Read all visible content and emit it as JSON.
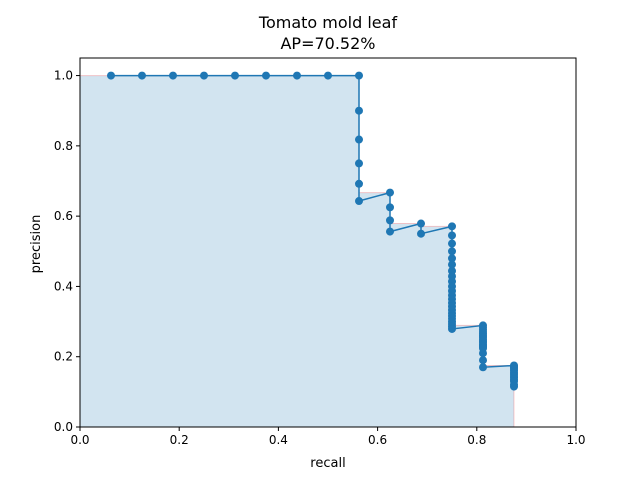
{
  "chart_data": {
    "type": "line",
    "title": "Tomato mold leaf",
    "subtitle": "AP=70.52%",
    "xlabel": "recall",
    "ylabel": "precision",
    "xlim": [
      0,
      1
    ],
    "ylim": [
      0,
      1.05
    ],
    "xticks": [
      "0.0",
      "0.2",
      "0.4",
      "0.6",
      "0.8",
      "1.0"
    ],
    "yticks": [
      "0.0",
      "0.2",
      "0.4",
      "0.6",
      "0.8",
      "1.0"
    ],
    "grid": false,
    "legend": "none",
    "colors": {
      "line": "#1f77b4",
      "fill": "#1f77b4",
      "fill_opacity": 0.2,
      "envelope": "#ff0000"
    },
    "series": [
      {
        "x": [
          0.0625,
          0.125,
          0.1875,
          0.25,
          0.3125,
          0.375,
          0.4375,
          0.5,
          0.5625,
          0.5625,
          0.5625,
          0.5625,
          0.5625,
          0.5625,
          0.625,
          0.625,
          0.625,
          0.625,
          0.6875,
          0.6875,
          0.75,
          0.75,
          0.75,
          0.75,
          0.75,
          0.75,
          0.75,
          0.75,
          0.75,
          0.75,
          0.75,
          0.75,
          0.75,
          0.75,
          0.75,
          0.75,
          0.75,
          0.75,
          0.75,
          0.75,
          0.75,
          0.75,
          0.75,
          0.8125,
          0.8125,
          0.8125,
          0.8125,
          0.8125,
          0.8125,
          0.8125,
          0.8125,
          0.8125,
          0.8125,
          0.8125,
          0.8125,
          0.8125,
          0.8125,
          0.8125,
          0.8125,
          0.8125,
          0.875,
          0.875,
          0.875,
          0.875,
          0.875,
          0.875,
          0.875,
          0.875,
          0.875,
          0.875,
          0.875,
          0.875,
          0.875
        ],
        "y": [
          1.0,
          1.0,
          1.0,
          1.0,
          1.0,
          1.0,
          1.0,
          1.0,
          1.0,
          0.9,
          0.818,
          0.75,
          0.692,
          0.643,
          0.667,
          0.625,
          0.588,
          0.556,
          0.579,
          0.55,
          0.571,
          0.545,
          0.522,
          0.5,
          0.48,
          0.462,
          0.444,
          0.429,
          0.414,
          0.4,
          0.387,
          0.375,
          0.364,
          0.353,
          0.343,
          0.333,
          0.324,
          0.316,
          0.308,
          0.3,
          0.293,
          0.286,
          0.279,
          0.289,
          0.283,
          0.277,
          0.271,
          0.265,
          0.26,
          0.255,
          0.25,
          0.245,
          0.241,
          0.236,
          0.232,
          0.228,
          0.224,
          0.21,
          0.19,
          0.17,
          0.175,
          0.172,
          0.169,
          0.165,
          0.16,
          0.155,
          0.15,
          0.145,
          0.14,
          0.135,
          0.13,
          0.12,
          0.115
        ]
      }
    ],
    "interpolated_precision": {
      "x": [
        0,
        0.5625,
        0.5625,
        0.625,
        0.625,
        0.6875,
        0.6875,
        0.75,
        0.75,
        0.8125,
        0.8125,
        0.875,
        0.875
      ],
      "y": [
        1.0,
        1.0,
        0.667,
        0.667,
        0.579,
        0.579,
        0.571,
        0.571,
        0.289,
        0.289,
        0.175,
        0.175,
        0
      ]
    }
  }
}
